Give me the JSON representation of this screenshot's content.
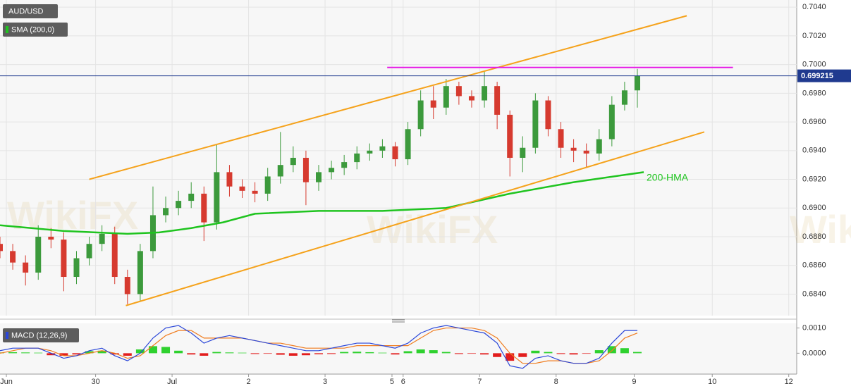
{
  "chart_data": [
    {
      "type": "candlestick",
      "title": "AUD/USD",
      "watermark": "WikiFX",
      "x": [
        0,
        4,
        8,
        12,
        16,
        20,
        24,
        28,
        32,
        36,
        40,
        44,
        48,
        52,
        56,
        60,
        64,
        68,
        72,
        76,
        80,
        84,
        88,
        92,
        96,
        100,
        104,
        108,
        112,
        116,
        120,
        124,
        128,
        132,
        136,
        140,
        144,
        148,
        152,
        156,
        160,
        164,
        168,
        172,
        176,
        180,
        184,
        188,
        192,
        196,
        200
      ],
      "open": [
        0.6875,
        0.687,
        0.6862,
        0.6855,
        0.688,
        0.6878,
        0.6852,
        0.6865,
        0.6875,
        0.6882,
        0.6852,
        0.684,
        0.687,
        0.6895,
        0.69,
        0.6905,
        0.691,
        0.689,
        0.6925,
        0.6915,
        0.6912,
        0.691,
        0.6922,
        0.693,
        0.6935,
        0.6918,
        0.6925,
        0.6928,
        0.6932,
        0.6938,
        0.694,
        0.6943,
        0.6934,
        0.6955,
        0.6975,
        0.697,
        0.6985,
        0.6978,
        0.6975,
        0.6985,
        0.6965,
        0.6935,
        0.6942,
        0.6975,
        0.6955,
        0.6942,
        0.694,
        0.6938,
        0.6948,
        0.6972,
        0.6982
      ],
      "high": [
        0.688,
        0.6875,
        0.6867,
        0.6888,
        0.6886,
        0.6883,
        0.687,
        0.688,
        0.6888,
        0.6887,
        0.6857,
        0.6875,
        0.6915,
        0.6908,
        0.6912,
        0.6918,
        0.6915,
        0.6944,
        0.693,
        0.692,
        0.6918,
        0.6928,
        0.6953,
        0.6943,
        0.694,
        0.693,
        0.6933,
        0.6937,
        0.6943,
        0.6945,
        0.6948,
        0.6946,
        0.696,
        0.6982,
        0.6985,
        0.699,
        0.6988,
        0.6982,
        0.6995,
        0.6988,
        0.6968,
        0.695,
        0.698,
        0.6978,
        0.696,
        0.6948,
        0.6945,
        0.6955,
        0.6978,
        0.6988,
        0.6997
      ],
      "low": [
        0.6865,
        0.6857,
        0.6846,
        0.685,
        0.6872,
        0.6842,
        0.6847,
        0.686,
        0.687,
        0.6847,
        0.6833,
        0.6835,
        0.6865,
        0.689,
        0.6895,
        0.69,
        0.6877,
        0.6885,
        0.6908,
        0.6907,
        0.6904,
        0.6905,
        0.6917,
        0.6925,
        0.6902,
        0.6912,
        0.692,
        0.6923,
        0.6927,
        0.6933,
        0.6935,
        0.6929,
        0.693,
        0.695,
        0.6962,
        0.6965,
        0.6972,
        0.697,
        0.697,
        0.6955,
        0.6922,
        0.6925,
        0.6938,
        0.695,
        0.6935,
        0.6932,
        0.6928,
        0.6933,
        0.6943,
        0.6968,
        0.697
      ],
      "close": [
        0.687,
        0.6862,
        0.6855,
        0.688,
        0.6878,
        0.6852,
        0.6865,
        0.6875,
        0.6882,
        0.6852,
        0.684,
        0.687,
        0.6895,
        0.69,
        0.6905,
        0.691,
        0.689,
        0.6925,
        0.6915,
        0.6912,
        0.691,
        0.6922,
        0.693,
        0.6935,
        0.6918,
        0.6925,
        0.6928,
        0.6932,
        0.6938,
        0.694,
        0.6943,
        0.6934,
        0.6955,
        0.6975,
        0.697,
        0.6985,
        0.6978,
        0.6975,
        0.6985,
        0.6965,
        0.6935,
        0.6942,
        0.6975,
        0.6955,
        0.6942,
        0.694,
        0.6938,
        0.6948,
        0.6972,
        0.6982,
        0.6992
      ],
      "up_color": "#3c9a3c",
      "down_color": "#d63a2f",
      "xlim": [
        0,
        250
      ],
      "ylim": [
        0.6825,
        0.7045
      ],
      "yticks": [
        {
          "value": 0.684,
          "label": "0.6840"
        },
        {
          "value": 0.686,
          "label": "0.6860"
        },
        {
          "value": 0.688,
          "label": "0.6880"
        },
        {
          "value": 0.69,
          "label": "0.6900"
        },
        {
          "value": 0.692,
          "label": "0.6920"
        },
        {
          "value": 0.694,
          "label": "0.6940"
        },
        {
          "value": 0.696,
          "label": "0.6960"
        },
        {
          "value": 0.698,
          "label": "0.6980"
        },
        {
          "value": 0.7,
          "label": "0.7000"
        },
        {
          "value": 0.702,
          "label": "0.7020"
        },
        {
          "value": 0.704,
          "label": "0.7040"
        }
      ],
      "grid": true,
      "overlay": {
        "name": "SMA (200,0)",
        "annotation": "200-HMA",
        "color": "#1fc41f",
        "x": [
          0,
          20,
          40,
          50,
          60,
          70,
          80,
          100,
          120,
          140,
          160,
          180,
          202
        ],
        "values": [
          0.6888,
          0.6884,
          0.6882,
          0.6883,
          0.6886,
          0.689,
          0.6896,
          0.6898,
          0.6898,
          0.69,
          0.691,
          0.6918,
          0.6925
        ]
      },
      "lines": [
        {
          "color": "#f5a21b",
          "x": [
            28,
            215.5
          ],
          "values": [
            0.692,
            0.7034
          ]
        },
        {
          "color": "#f5a21b",
          "x": [
            39.5,
            221
          ],
          "values": [
            0.6832,
            0.6953
          ]
        },
        {
          "color": "#e619e6",
          "x": [
            121.5,
            230
          ],
          "values": [
            0.6998,
            0.6998
          ]
        }
      ],
      "last_price": 0.699215,
      "last_price_color": "#1f3a8f"
    },
    {
      "type": "macd",
      "title": "MACD (12,26,9)",
      "x": [
        0,
        4,
        8,
        12,
        16,
        20,
        24,
        28,
        32,
        36,
        40,
        44,
        48,
        52,
        56,
        60,
        64,
        68,
        72,
        76,
        80,
        84,
        88,
        92,
        96,
        100,
        104,
        108,
        112,
        116,
        120,
        124,
        128,
        132,
        136,
        140,
        144,
        148,
        152,
        156,
        160,
        164,
        168,
        172,
        176,
        180,
        184,
        188,
        192,
        196,
        200
      ],
      "histogram": {
        "up_color": "#2fd12f",
        "down_color": "#e21d1d",
        "values": [
          3e-05,
          4e-05,
          3e-05,
          2e-05,
          -8e-05,
          -0.0001,
          -5e-05,
          8e-05,
          0.0001,
          -5e-05,
          -0.0001,
          0.00015,
          0.00028,
          0.00025,
          0.0001,
          -5e-05,
          -0.0001,
          5e-05,
          3e-05,
          2e-05,
          -3e-05,
          -2e-05,
          -6e-05,
          -0.0001,
          -8e-05,
          -4e-05,
          -3e-05,
          5e-05,
          6e-05,
          4e-05,
          2e-05,
          -5e-05,
          8e-05,
          0.00015,
          0.00012,
          5e-05,
          -3e-05,
          -2e-05,
          -5e-05,
          -0.00015,
          -0.0003,
          -0.00015,
          0.0001,
          5e-05,
          -3e-05,
          -5e-05,
          -2e-05,
          0.00012,
          0.00028,
          0.0002,
          5e-05
        ]
      },
      "macd": {
        "color": "#2b47d9",
        "values": [
          0.0001,
          0.0002,
          0.0002,
          0.0002,
          0.0,
          -0.0002,
          -0.0001,
          0.0001,
          0.0002,
          -0.0001,
          -0.0003,
          0.0,
          0.0006,
          0.001,
          0.0011,
          0.0008,
          0.0004,
          0.0006,
          0.0007,
          0.0006,
          0.0005,
          0.0004,
          0.0003,
          0.0002,
          0.0001,
          0.0001,
          0.0002,
          0.0003,
          0.0004,
          0.0004,
          0.0003,
          0.0002,
          0.0004,
          0.0008,
          0.001,
          0.0011,
          0.001,
          0.0009,
          0.0008,
          0.0004,
          -0.0005,
          -0.0006,
          -0.0002,
          -0.0001,
          -0.0003,
          -0.0004,
          -0.0004,
          -0.0002,
          0.0004,
          0.0009,
          0.0009
        ]
      },
      "signal": {
        "color": "#f07c1e",
        "values": [
          0.0,
          0.0001,
          0.0002,
          0.0002,
          0.0001,
          -0.0001,
          -0.0001,
          0.0,
          0.0001,
          0.0,
          -0.0002,
          -0.0001,
          0.0003,
          0.0007,
          0.0009,
          0.0009,
          0.0006,
          0.0006,
          0.0006,
          0.0006,
          0.0005,
          0.0004,
          0.0004,
          0.0003,
          0.0002,
          0.0002,
          0.0002,
          0.0002,
          0.0003,
          0.0003,
          0.0003,
          0.0003,
          0.0003,
          0.0006,
          0.0009,
          0.001,
          0.001,
          0.001,
          0.0009,
          0.0006,
          0.0,
          -0.0004,
          -0.0004,
          -0.0003,
          -0.0003,
          -0.0004,
          -0.0004,
          -0.0003,
          0.0001,
          0.0006,
          0.0008
        ]
      },
      "xlim": [
        0,
        250
      ],
      "ylim": [
        -0.0008,
        0.0011
      ],
      "yticks": [
        {
          "value": 0.0,
          "label": "0.0000"
        },
        {
          "value": 0.001,
          "label": "0.0010"
        }
      ],
      "xticks": [
        {
          "value": 2,
          "label": "Jun"
        },
        {
          "value": 30,
          "label": "30"
        },
        {
          "value": 54,
          "label": "Jul"
        },
        {
          "value": 78,
          "label": "2"
        },
        {
          "value": 102,
          "label": "3"
        },
        {
          "value": 123,
          "label": "5"
        },
        {
          "value": 126.5,
          "label": "6"
        },
        {
          "value": 150.5,
          "label": "7"
        },
        {
          "value": 174.5,
          "label": "8"
        },
        {
          "value": 199,
          "label": "9"
        },
        {
          "value": 223.5,
          "label": "10"
        },
        {
          "value": 247.5,
          "label": "12"
        }
      ]
    }
  ]
}
